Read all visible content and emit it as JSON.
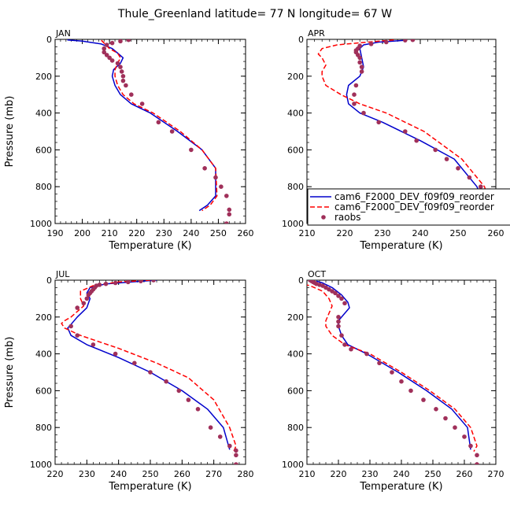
{
  "figure_title": "Thule_Greenland   latitude= 77 N longitude= 67 W",
  "colors": {
    "model1": "#0000cc",
    "model2": "#ff0000",
    "obs": "#a0305a"
  },
  "legend": {
    "entries": [
      "cam6_F2000_DEV_f09f09_reorder",
      "cam6_F2000_DEV_f09f09_reorder",
      "raobs"
    ]
  },
  "chart_data": [
    {
      "type": "line",
      "title": "JAN",
      "xlabel": "Temperature (K)",
      "ylabel": "Pressure (mb)",
      "xlim": [
        190,
        260
      ],
      "ylim": [
        1000,
        0
      ],
      "xticks": [
        "190",
        "200",
        "210",
        "220",
        "230",
        "240",
        "250",
        "260"
      ],
      "yticks": [
        "0",
        "200",
        "400",
        "600",
        "800",
        "1000"
      ],
      "series": [
        {
          "name": "cam6_F2000_DEV_f09f09_reorder",
          "style": "solid",
          "color": "#0000cc",
          "x": [
            194.5,
            200,
            207,
            211,
            213,
            215,
            214,
            211.5,
            211,
            212,
            214,
            218,
            225,
            235,
            244,
            249,
            249,
            246,
            243
          ],
          "y": [
            3,
            10,
            25,
            50,
            75,
            100,
            130,
            165,
            200,
            250,
            300,
            350,
            400,
            500,
            600,
            700,
            850,
            900,
            930
          ]
        },
        {
          "name": "cam6_F2000_DEV_f09f09_reorder",
          "style": "dashed",
          "color": "#ff0000",
          "x": [
            207,
            208,
            210,
            213,
            214,
            213,
            212,
            212,
            213,
            215,
            219,
            226,
            236,
            244,
            249,
            249.5,
            247,
            244
          ],
          "y": [
            5,
            20,
            50,
            75,
            100,
            130,
            165,
            200,
            250,
            300,
            350,
            400,
            500,
            600,
            700,
            850,
            900,
            930
          ]
        },
        {
          "name": "raobs",
          "style": "dots",
          "color": "#a0305a",
          "x": [
            217,
            214,
            211,
            209,
            208,
            208,
            209,
            210,
            211,
            213,
            214,
            214.5,
            215,
            215,
            216,
            218,
            222,
            228,
            233,
            240,
            245,
            249,
            251,
            253,
            254,
            254,
            253
          ],
          "y": [
            3,
            10,
            20,
            30,
            50,
            70,
            85,
            100,
            115,
            130,
            150,
            175,
            200,
            225,
            250,
            300,
            350,
            450,
            500,
            600,
            700,
            750,
            800,
            850,
            925,
            950,
            1000
          ]
        }
      ]
    },
    {
      "type": "line",
      "title": "APR",
      "xlabel": "Temperature (K)",
      "ylabel": "",
      "xlim": [
        210,
        260
      ],
      "ylim": [
        1000,
        0
      ],
      "xticks": [
        "210",
        "220",
        "230",
        "240",
        "250",
        "260"
      ],
      "yticks": [
        "0",
        "200",
        "400",
        "600",
        "800",
        "1000"
      ],
      "series": [
        {
          "name": "cam6_F2000_DEV_f09f09_reorder",
          "style": "solid",
          "color": "#0000cc",
          "x": [
            236,
            229,
            225,
            224,
            224.5,
            225,
            224,
            221,
            220.5,
            221,
            224,
            230,
            240,
            249,
            255,
            257,
            257
          ],
          "y": [
            5,
            15,
            30,
            50,
            100,
            150,
            200,
            250,
            300,
            350,
            400,
            450,
            550,
            650,
            800,
            900,
            950
          ]
        },
        {
          "name": "cam6_F2000_DEV_f09f09_reorder",
          "style": "dashed",
          "color": "#ff0000",
          "x": [
            233,
            226,
            218,
            214,
            213,
            214,
            215,
            214,
            214,
            215,
            219,
            224,
            231,
            241,
            251,
            257,
            258.5,
            257.5
          ],
          "y": [
            3,
            15,
            30,
            50,
            80,
            100,
            140,
            175,
            200,
            250,
            300,
            350,
            400,
            500,
            650,
            800,
            900,
            950
          ]
        },
        {
          "name": "raobs",
          "style": "dots",
          "color": "#a0305a",
          "x": [
            238,
            236,
            231,
            227,
            224,
            223.5,
            223,
            223,
            223.5,
            224,
            224,
            224.5,
            224.5,
            223,
            222.5,
            222.5,
            225,
            229,
            236,
            239,
            244,
            247,
            250,
            253,
            256,
            258
          ],
          "y": [
            3,
            5,
            15,
            25,
            35,
            50,
            60,
            70,
            85,
            100,
            125,
            150,
            175,
            250,
            300,
            350,
            400,
            450,
            500,
            550,
            600,
            650,
            700,
            750,
            800,
            925
          ]
        }
      ]
    },
    {
      "type": "line",
      "title": "JUL",
      "xlabel": "Temperature (K)",
      "ylabel": "Pressure (mb)",
      "xlim": [
        220,
        280
      ],
      "ylim": [
        1000,
        0
      ],
      "xticks": [
        "220",
        "230",
        "240",
        "250",
        "260",
        "270",
        "280"
      ],
      "yticks": [
        "0",
        "200",
        "400",
        "600",
        "800",
        "1000"
      ],
      "series": [
        {
          "name": "cam6_F2000_DEV_f09f09_reorder",
          "style": "solid",
          "color": "#0000cc",
          "x": [
            252,
            244,
            236,
            231,
            230,
            231,
            230,
            227,
            225,
            224,
            225,
            230,
            240,
            250,
            260,
            268,
            273,
            275
          ],
          "y": [
            0,
            10,
            20,
            40,
            70,
            100,
            150,
            200,
            240,
            260,
            300,
            350,
            420,
            500,
            600,
            700,
            800,
            920
          ]
        },
        {
          "name": "cam6_F2000_DEV_f09f09_reorder",
          "style": "dashed",
          "color": "#ff0000",
          "x": [
            250,
            240,
            232,
            228,
            228,
            229,
            227,
            225,
            223,
            222,
            223,
            228,
            240,
            252,
            262,
            270,
            275,
            277,
            276
          ],
          "y": [
            0,
            10,
            30,
            60,
            100,
            140,
            170,
            200,
            220,
            235,
            260,
            300,
            370,
            450,
            530,
            650,
            800,
            900,
            940
          ]
        },
        {
          "name": "raobs",
          "style": "dots",
          "color": "#a0305a",
          "x": [
            251,
            247,
            243,
            239,
            236,
            234,
            233,
            232.5,
            232,
            231.5,
            231,
            230.5,
            230,
            229,
            227,
            225,
            227,
            232,
            239,
            245,
            250,
            255,
            259,
            262,
            265,
            269,
            272,
            275,
            277,
            277,
            277
          ],
          "y": [
            0,
            5,
            10,
            15,
            20,
            25,
            30,
            40,
            50,
            60,
            70,
            80,
            100,
            125,
            150,
            250,
            300,
            350,
            400,
            450,
            500,
            550,
            600,
            650,
            700,
            800,
            850,
            900,
            925,
            950,
            1000
          ]
        }
      ]
    },
    {
      "type": "line",
      "title": "OCT",
      "xlabel": "Temperature (K)",
      "ylabel": "",
      "xlim": [
        210,
        270
      ],
      "ylim": [
        1000,
        0
      ],
      "xticks": [
        "210",
        "220",
        "230",
        "240",
        "250",
        "260",
        "270"
      ],
      "yticks": [
        "0",
        "200",
        "400",
        "600",
        "800",
        "1000"
      ],
      "series": [
        {
          "name": "cam6_F2000_DEV_f09f09_reorder",
          "style": "solid",
          "color": "#0000cc",
          "x": [
            213,
            215,
            218,
            221,
            223,
            223.5,
            222,
            220,
            220,
            221,
            223,
            229,
            239,
            248,
            256,
            261,
            262
          ],
          "y": [
            5,
            15,
            40,
            80,
            120,
            150,
            180,
            220,
            250,
            300,
            350,
            400,
            500,
            600,
            700,
            800,
            920
          ]
        },
        {
          "name": "cam6_F2000_DEV_f09f09_reorder",
          "style": "dashed",
          "color": "#ff0000",
          "x": [
            207,
            211,
            215,
            217,
            218,
            217,
            216,
            216,
            218,
            222,
            230,
            240,
            249,
            257,
            262,
            264,
            263
          ],
          "y": [
            15,
            30,
            60,
            100,
            140,
            180,
            220,
            250,
            300,
            350,
            400,
            500,
            600,
            700,
            800,
            900,
            930
          ]
        },
        {
          "name": "raobs",
          "style": "dots",
          "color": "#a0305a",
          "x": [
            211,
            211.5,
            212,
            212.5,
            213,
            214,
            215,
            216,
            217,
            218,
            219,
            220,
            221,
            222,
            220,
            220,
            220,
            221,
            222,
            224,
            229,
            233,
            237,
            240,
            243,
            247,
            251,
            254,
            257,
            260,
            262,
            264,
            264
          ],
          "y": [
            0,
            5,
            10,
            15,
            20,
            25,
            30,
            40,
            50,
            60,
            70,
            85,
            100,
            125,
            200,
            225,
            250,
            300,
            350,
            375,
            400,
            450,
            500,
            550,
            600,
            650,
            700,
            750,
            800,
            850,
            900,
            950,
            1000
          ]
        }
      ]
    }
  ]
}
